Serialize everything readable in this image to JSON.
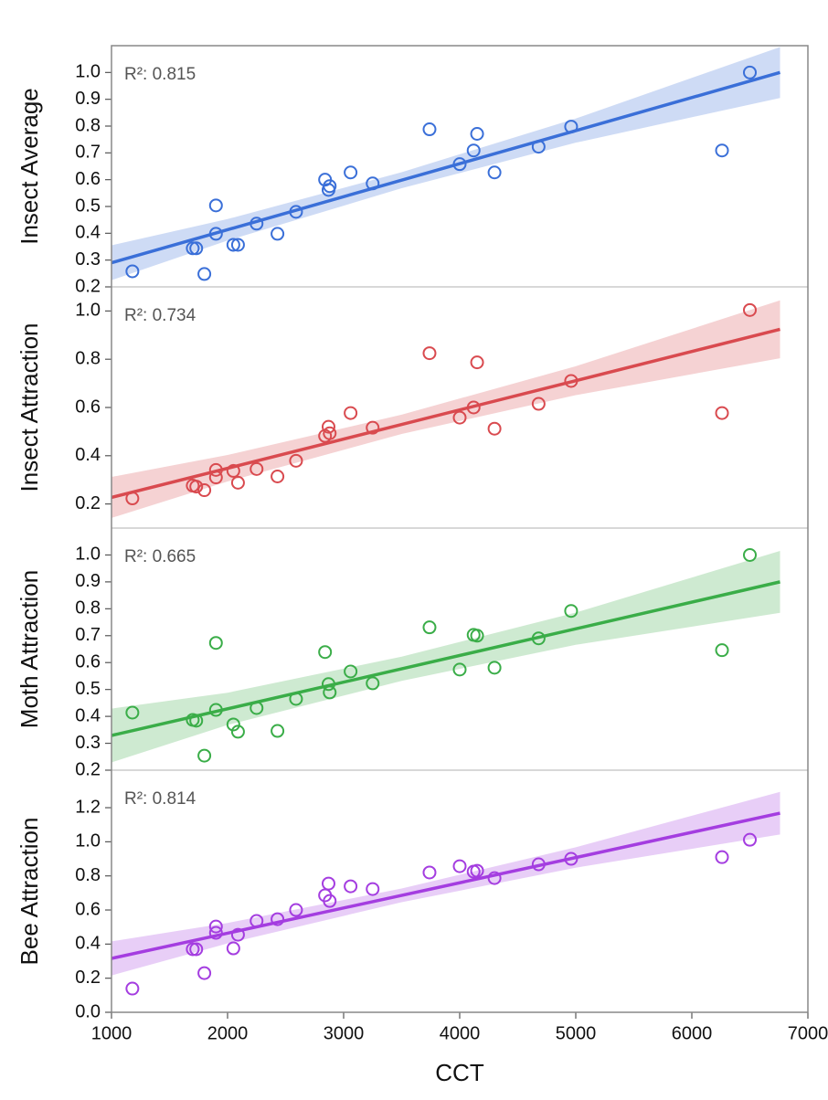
{
  "chart_data": [
    {
      "type": "scatter",
      "ylabel": "Insect Average",
      "annotation": "R²: 0.815",
      "color": "#3a6fd8",
      "x": [
        1180,
        1700,
        1730,
        1800,
        1900,
        1900,
        2050,
        2090,
        2250,
        2430,
        2590,
        2840,
        2870,
        2880,
        3060,
        3250,
        3740,
        4000,
        4120,
        4150,
        4300,
        4680,
        4960,
        6260,
        6500
      ],
      "values": [
        0.258,
        0.344,
        0.344,
        0.248,
        0.504,
        0.398,
        0.357,
        0.357,
        0.436,
        0.398,
        0.48,
        0.6,
        0.562,
        0.576,
        0.627,
        0.586,
        0.788,
        0.658,
        0.709,
        0.771,
        0.627,
        0.723,
        0.798,
        0.709,
        1.0
      ],
      "fit": {
        "x": [
          1000,
          6760
        ],
        "values": [
          0.29,
          1.0
        ]
      },
      "band": {
        "x": [
          1000,
          2000,
          3500,
          5000,
          6760
        ],
        "lower": [
          0.225,
          0.373,
          0.568,
          0.738,
          0.905
        ],
        "upper": [
          0.355,
          0.453,
          0.628,
          0.828,
          1.095
        ]
      },
      "xlim": [
        1000,
        7000
      ],
      "ylim": [
        0.2,
        1.1
      ],
      "yticks": [
        0.2,
        0.3,
        0.4,
        0.5,
        0.6,
        0.7,
        0.8,
        0.9,
        {
          "value": 1,
          "label": "1.0"
        }
      ]
    },
    {
      "type": "scatter",
      "ylabel": "Insect Attraction",
      "annotation": "R²: 0.734",
      "color": "#d94a4f",
      "x": [
        1180,
        1700,
        1730,
        1800,
        1900,
        1900,
        2050,
        2090,
        2250,
        2430,
        2590,
        2840,
        2870,
        2880,
        3060,
        3250,
        3740,
        4000,
        4120,
        4150,
        4300,
        4680,
        4960,
        6260,
        6500
      ],
      "values": [
        0.223,
        0.276,
        0.272,
        0.257,
        0.341,
        0.31,
        0.337,
        0.288,
        0.345,
        0.314,
        0.379,
        0.482,
        0.52,
        0.493,
        0.577,
        0.516,
        0.825,
        0.558,
        0.6,
        0.787,
        0.512,
        0.615,
        0.71,
        0.577,
        1.004
      ],
      "fit": {
        "x": [
          1000,
          6760
        ],
        "values": [
          0.227,
          0.924
        ]
      },
      "band": {
        "x": [
          1000,
          2000,
          3500,
          5000,
          6760
        ],
        "lower": [
          0.142,
          0.293,
          0.49,
          0.651,
          0.804
        ],
        "upper": [
          0.312,
          0.403,
          0.57,
          0.771,
          1.044
        ]
      },
      "xlim": [
        1000,
        7000
      ],
      "ylim": [
        0.1,
        1.1
      ],
      "yticks": [
        0.2,
        0.4,
        0.6,
        0.8,
        {
          "value": 1,
          "label": "1.0"
        }
      ]
    },
    {
      "type": "scatter",
      "ylabel": "Moth Attraction",
      "annotation": "R²: 0.665",
      "color": "#3aad48",
      "x": [
        1180,
        1700,
        1730,
        1800,
        1900,
        1900,
        2050,
        2090,
        2250,
        2430,
        2590,
        2840,
        2870,
        2880,
        3060,
        3250,
        3740,
        4000,
        4120,
        4150,
        4300,
        4680,
        4960,
        6260,
        6500
      ],
      "values": [
        0.414,
        0.387,
        0.384,
        0.254,
        0.673,
        0.424,
        0.37,
        0.343,
        0.431,
        0.346,
        0.465,
        0.639,
        0.52,
        0.489,
        0.567,
        0.523,
        0.731,
        0.574,
        0.703,
        0.7,
        0.581,
        0.69,
        0.792,
        0.646,
        1.0
      ],
      "fit": {
        "x": [
          1000,
          6760
        ],
        "values": [
          0.329,
          0.9
        ]
      },
      "band": {
        "x": [
          1000,
          2000,
          3500,
          5000,
          6760
        ],
        "lower": [
          0.229,
          0.368,
          0.532,
          0.666,
          0.785
        ],
        "upper": [
          0.429,
          0.488,
          0.622,
          0.786,
          1.015
        ]
      },
      "xlim": [
        1000,
        7000
      ],
      "ylim": [
        0.2,
        1.1
      ],
      "yticks": [
        0.2,
        0.3,
        0.4,
        0.5,
        0.6,
        0.7,
        0.8,
        0.9,
        {
          "value": 1,
          "label": "1.0"
        }
      ]
    },
    {
      "type": "scatter",
      "ylabel": "Bee Attraction",
      "annotation": "R²: 0.814",
      "color": "#a43de0",
      "xlabel": "CCT",
      "x": [
        1180,
        1700,
        1730,
        1800,
        1900,
        1900,
        2050,
        2090,
        2250,
        2430,
        2590,
        2840,
        2870,
        2880,
        3060,
        3250,
        3740,
        4000,
        4120,
        4150,
        4300,
        4680,
        4960,
        6260,
        6500
      ],
      "values": [
        0.139,
        0.37,
        0.37,
        0.23,
        0.503,
        0.466,
        0.375,
        0.455,
        0.536,
        0.546,
        0.6,
        0.686,
        0.755,
        0.653,
        0.739,
        0.723,
        0.82,
        0.857,
        0.825,
        0.83,
        0.787,
        0.868,
        0.9,
        0.91,
        1.012
      ],
      "fit": {
        "x": [
          1000,
          6760
        ],
        "values": [
          0.316,
          1.168
        ]
      },
      "band": {
        "x": [
          1000,
          2000,
          3500,
          5000,
          6760
        ],
        "lower": [
          0.216,
          0.404,
          0.646,
          0.848,
          1.043
        ],
        "upper": [
          0.416,
          0.524,
          0.726,
          0.968,
          1.293
        ]
      },
      "xlim": [
        1000,
        7000
      ],
      "ylim": [
        0,
        1.42
      ],
      "yticks": [
        {
          "value": 0,
          "label": "0.0"
        },
        0.2,
        0.4,
        0.6,
        0.8,
        {
          "value": 1,
          "label": "1.0"
        },
        1.2
      ],
      "xticks": [
        1000,
        2000,
        3000,
        4000,
        5000,
        6000,
        7000
      ]
    }
  ]
}
